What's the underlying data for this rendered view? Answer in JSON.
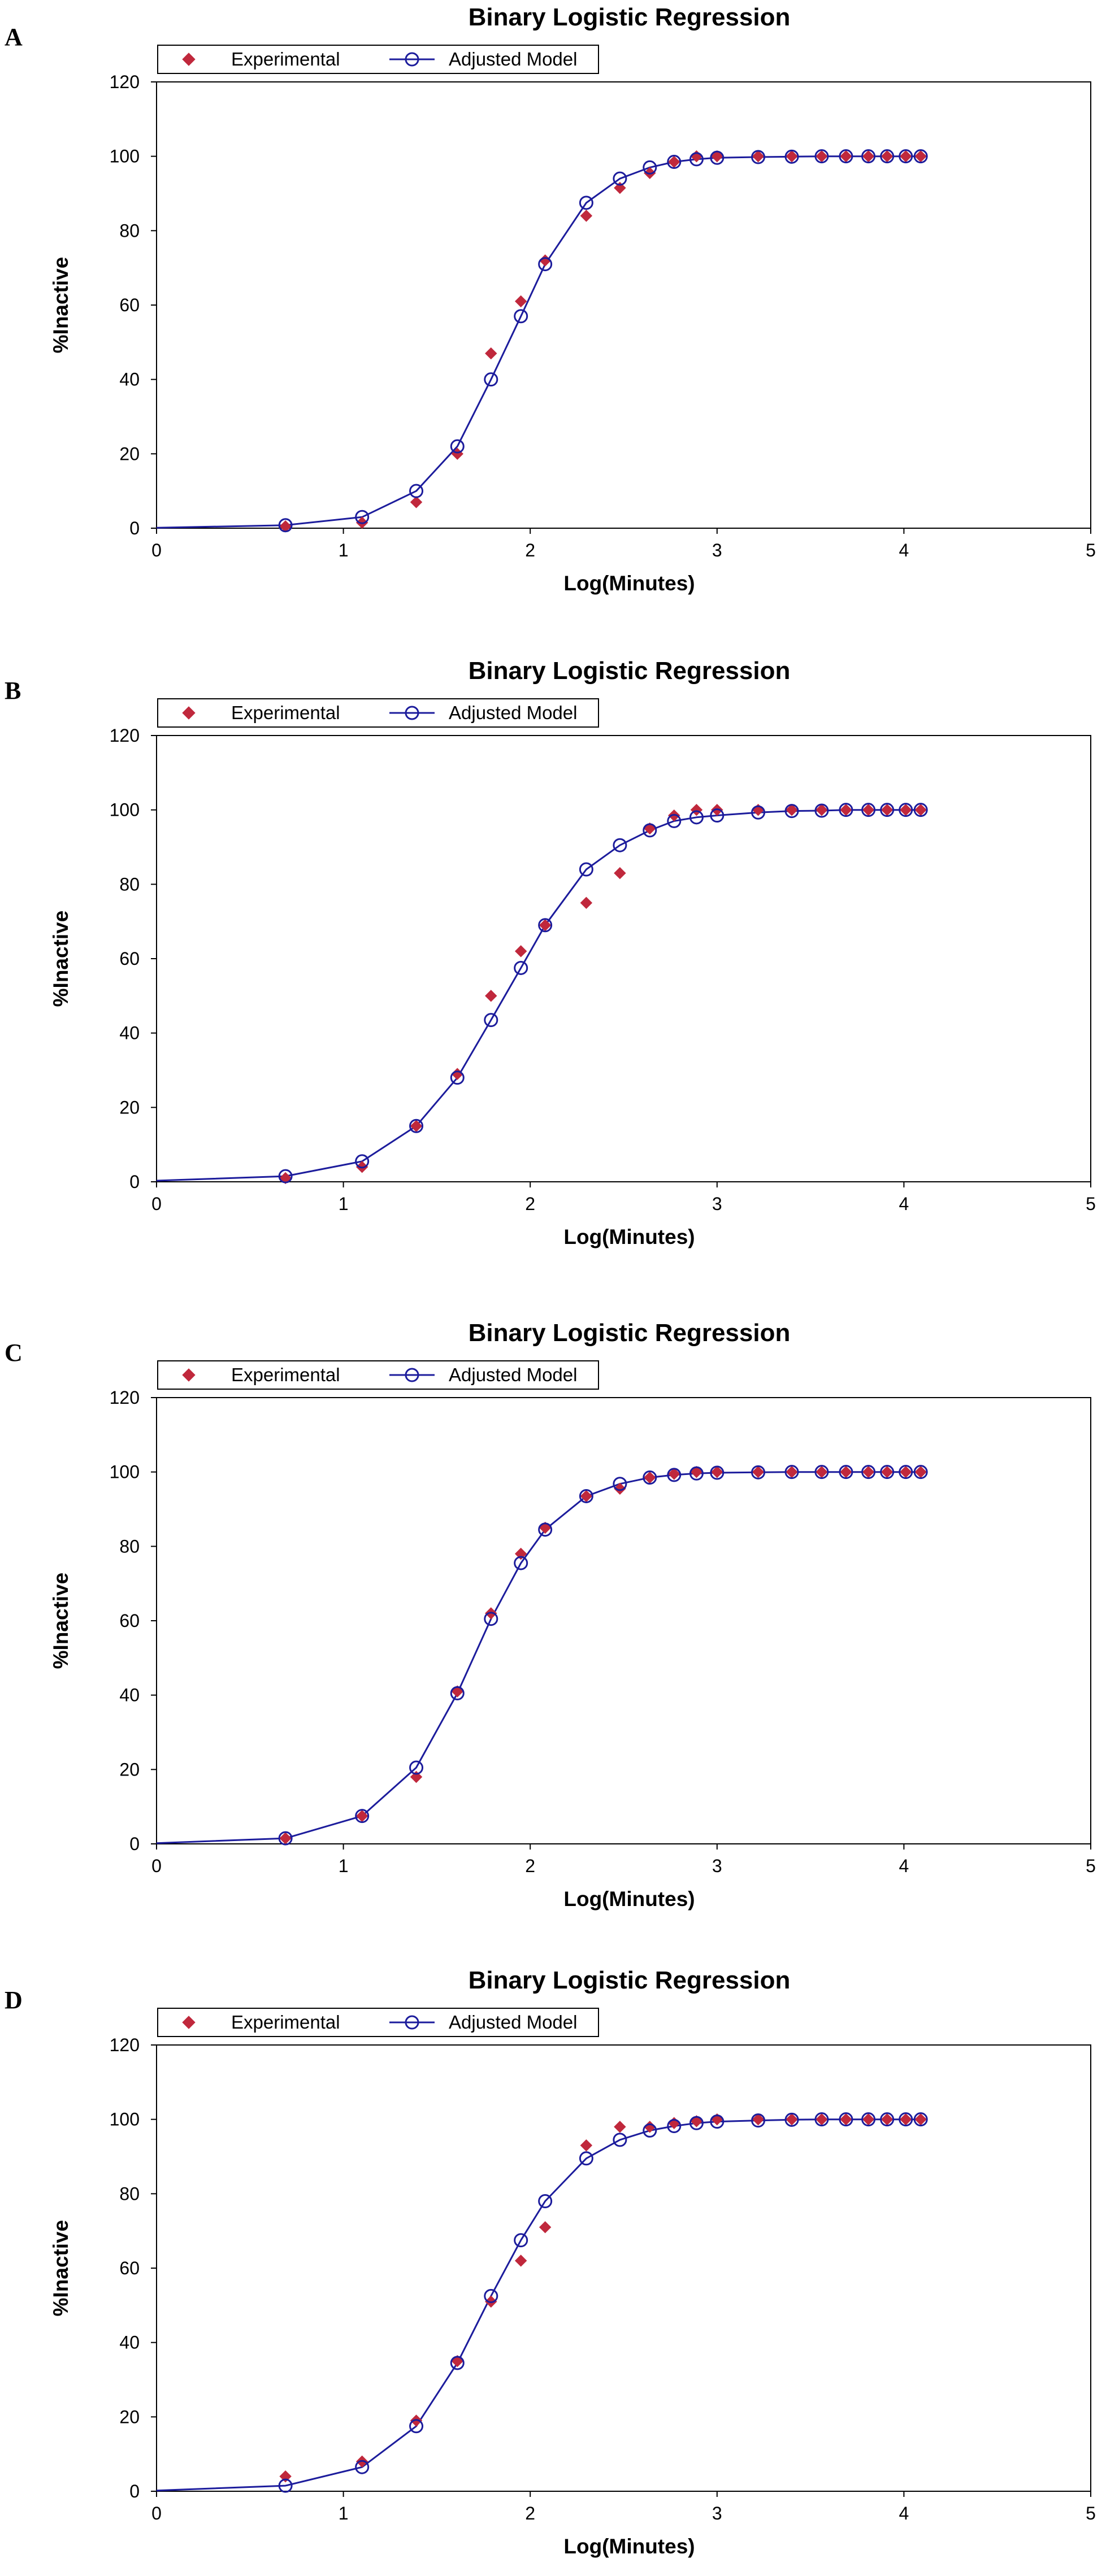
{
  "colors": {
    "experimental": "#c0283c",
    "model_line": "#1c1c9c",
    "model_marker": "#1c1c9c",
    "axis": "#000000"
  },
  "chart_data": [
    {
      "panel": "A",
      "type": "scatter",
      "title": "Binary Logistic Regression",
      "xlabel": "Log(Minutes)",
      "ylabel": "%Inactive",
      "xlim": [
        0,
        5
      ],
      "ylim": [
        0,
        120
      ],
      "xticks": [
        "0",
        "1",
        "2",
        "3",
        "4",
        "5"
      ],
      "yticks": [
        "0",
        "20",
        "40",
        "60",
        "80",
        "100",
        "120"
      ],
      "legend": {
        "position": "top-left",
        "items": [
          "Experimental",
          "Adjusted Model"
        ]
      },
      "series": [
        {
          "name": "Experimental",
          "kind": "points",
          "x": [
            0.69,
            1.1,
            1.39,
            1.61,
            1.79,
            1.95,
            2.08,
            2.3,
            2.48,
            2.64,
            2.77,
            2.89,
            3.0,
            3.22,
            3.4,
            3.56,
            3.69,
            3.81,
            3.91,
            4.01,
            4.09
          ],
          "y": [
            0.5,
            1.5,
            7,
            20,
            47,
            61,
            72,
            84,
            91.5,
            95.5,
            98.5,
            100,
            100,
            100,
            100,
            100,
            100,
            100,
            100,
            100,
            100
          ]
        },
        {
          "name": "Adjusted Model",
          "kind": "line-markers",
          "x": [
            0,
            0.69,
            1.1,
            1.39,
            1.61,
            1.79,
            1.95,
            2.08,
            2.3,
            2.48,
            2.64,
            2.77,
            2.89,
            3.0,
            3.22,
            3.4,
            3.56,
            3.69,
            3.81,
            3.91,
            4.01,
            4.09
          ],
          "y": [
            0.1,
            0.8,
            3,
            10,
            22,
            40,
            57,
            71,
            87.5,
            94,
            97,
            98.5,
            99.2,
            99.6,
            99.8,
            99.9,
            100,
            100,
            100,
            100,
            100,
            100
          ]
        }
      ]
    },
    {
      "panel": "B",
      "type": "scatter",
      "title": "Binary Logistic Regression",
      "xlabel": "Log(Minutes)",
      "ylabel": "%Inactive",
      "xlim": [
        0,
        5
      ],
      "ylim": [
        0,
        120
      ],
      "xticks": [
        "0",
        "1",
        "2",
        "3",
        "4",
        "5"
      ],
      "yticks": [
        "0",
        "20",
        "40",
        "60",
        "80",
        "100",
        "120"
      ],
      "legend": {
        "position": "top-left",
        "items": [
          "Experimental",
          "Adjusted Model"
        ]
      },
      "series": [
        {
          "name": "Experimental",
          "kind": "points",
          "x": [
            0.69,
            1.1,
            1.39,
            1.61,
            1.79,
            1.95,
            2.08,
            2.3,
            2.48,
            2.64,
            2.77,
            2.89,
            3.0,
            3.22,
            3.4,
            3.56,
            3.69,
            3.81,
            3.91,
            4.01,
            4.09
          ],
          "y": [
            1,
            4,
            15,
            29,
            50,
            62,
            69,
            75,
            83,
            95,
            98.5,
            100,
            100,
            100,
            100,
            100,
            100,
            100,
            100,
            100,
            100
          ]
        },
        {
          "name": "Adjusted Model",
          "kind": "line-markers",
          "x": [
            0,
            0.69,
            1.1,
            1.39,
            1.61,
            1.79,
            1.95,
            2.08,
            2.3,
            2.48,
            2.64,
            2.77,
            2.89,
            3.0,
            3.22,
            3.4,
            3.56,
            3.69,
            3.81,
            3.91,
            4.01,
            4.09
          ],
          "y": [
            0.3,
            1.5,
            5.5,
            15,
            28,
            43.5,
            57.5,
            69,
            84,
            90.5,
            94.5,
            97,
            98,
            98.5,
            99.3,
            99.7,
            99.8,
            100,
            100,
            100,
            100,
            100
          ]
        }
      ]
    },
    {
      "panel": "C",
      "type": "scatter",
      "title": "Binary Logistic Regression",
      "xlabel": "Log(Minutes)",
      "ylabel": "%Inactive",
      "xlim": [
        0,
        5
      ],
      "ylim": [
        0,
        120
      ],
      "xticks": [
        "0",
        "1",
        "2",
        "3",
        "4",
        "5"
      ],
      "yticks": [
        "0",
        "20",
        "40",
        "60",
        "80",
        "100",
        "120"
      ],
      "legend": {
        "position": "top-left",
        "items": [
          "Experimental",
          "Adjusted Model"
        ]
      },
      "series": [
        {
          "name": "Experimental",
          "kind": "points",
          "x": [
            0.69,
            1.1,
            1.39,
            1.61,
            1.79,
            1.95,
            2.08,
            2.3,
            2.48,
            2.64,
            2.77,
            2.89,
            3.0,
            3.22,
            3.4,
            3.56,
            3.69,
            3.81,
            3.91,
            4.01,
            4.09
          ],
          "y": [
            1.5,
            7.5,
            18,
            41,
            62,
            78,
            85,
            93.5,
            95.5,
            98.5,
            99.5,
            100,
            100,
            100,
            100,
            100,
            100,
            100,
            100,
            100,
            100
          ]
        },
        {
          "name": "Adjusted Model",
          "kind": "line-markers",
          "x": [
            0,
            0.69,
            1.1,
            1.39,
            1.61,
            1.79,
            1.95,
            2.08,
            2.3,
            2.48,
            2.64,
            2.77,
            2.89,
            3.0,
            3.22,
            3.4,
            3.56,
            3.69,
            3.81,
            3.91,
            4.01,
            4.09
          ],
          "y": [
            0.2,
            1.5,
            7.5,
            20.5,
            40.5,
            60.5,
            75.5,
            84.5,
            93.5,
            96.8,
            98.5,
            99.2,
            99.6,
            99.8,
            99.9,
            100,
            100,
            100,
            100,
            100,
            100,
            100
          ]
        }
      ]
    },
    {
      "panel": "D",
      "type": "scatter",
      "title": "Binary Logistic Regression",
      "xlabel": "Log(Minutes)",
      "ylabel": "%Inactive",
      "xlim": [
        0,
        5
      ],
      "ylim": [
        0,
        120
      ],
      "xticks": [
        "0",
        "1",
        "2",
        "3",
        "4",
        "5"
      ],
      "yticks": [
        "0",
        "20",
        "40",
        "60",
        "80",
        "100",
        "120"
      ],
      "legend": {
        "position": "top-left",
        "items": [
          "Experimental",
          "Adjusted Model"
        ]
      },
      "series": [
        {
          "name": "Experimental",
          "kind": "points",
          "x": [
            0.69,
            1.1,
            1.39,
            1.61,
            1.79,
            1.95,
            2.08,
            2.3,
            2.48,
            2.64,
            2.77,
            2.89,
            3.0,
            3.22,
            3.4,
            3.56,
            3.69,
            3.81,
            3.91,
            4.01,
            4.09
          ],
          "y": [
            4,
            8,
            19,
            35,
            51,
            62,
            71,
            93,
            98,
            98,
            99,
            99.5,
            100,
            100,
            100,
            100,
            100,
            100,
            100,
            100,
            100
          ]
        },
        {
          "name": "Adjusted Model",
          "kind": "line-markers",
          "x": [
            0,
            0.69,
            1.1,
            1.39,
            1.61,
            1.79,
            1.95,
            2.08,
            2.3,
            2.48,
            2.64,
            2.77,
            2.89,
            3.0,
            3.22,
            3.4,
            3.56,
            3.69,
            3.81,
            3.91,
            4.01,
            4.09
          ],
          "y": [
            0.2,
            1.5,
            6.5,
            17.5,
            34.5,
            52.5,
            67.5,
            78,
            89.5,
            94.5,
            97,
            98.2,
            99,
            99.4,
            99.7,
            99.9,
            100,
            100,
            100,
            100,
            100,
            100
          ]
        }
      ]
    }
  ]
}
